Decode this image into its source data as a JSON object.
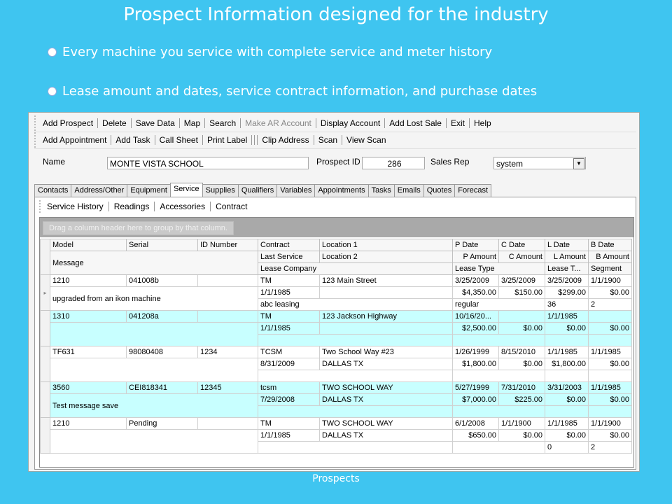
{
  "slide": {
    "title": "Prospect Information designed for the industry",
    "bullets": [
      "Every machine you service with complete service and meter history",
      "Lease amount and dates, service contract information, and purchase dates"
    ],
    "footer": "Prospects"
  },
  "toolbar1": [
    "Add Prospect",
    "Delete",
    "Save Data",
    "Map",
    "Search",
    "Make AR Account",
    "Display Account",
    "Add Lost Sale",
    "Exit",
    "Help"
  ],
  "toolbar2": [
    "Add Appointment",
    "Add Task",
    "Call Sheet",
    "Print Label",
    "Clip Address",
    "Scan",
    "View Scan"
  ],
  "form": {
    "name_label": "Name",
    "name_value": "MONTE VISTA SCHOOL",
    "prospect_id_label": "Prospect ID",
    "prospect_id_value": "286",
    "sales_rep_label": "Sales Rep",
    "sales_rep_value": "system"
  },
  "tabs": [
    "Contacts",
    "Address/Other",
    "Equipment",
    "Service",
    "Supplies",
    "Qualifiers",
    "Variables",
    "Appointments",
    "Tasks",
    "Emails",
    "Quotes",
    "Forecast"
  ],
  "active_tab": "Service",
  "subtabs": [
    "Service History",
    "Readings",
    "Accessories",
    "Contract"
  ],
  "grid": {
    "group_hint": "Drag a column header here to group by that column.",
    "headers": {
      "row1": [
        "Model",
        "Serial",
        "ID Number",
        "Contract",
        "Location 1",
        "P Date",
        "C Date",
        "L Date",
        "B Date"
      ],
      "row2": [
        "Message",
        "Last Service",
        "Location 2",
        "P Amount",
        "C Amount",
        "L Amount",
        "B Amount"
      ],
      "row3": [
        "Lease Company",
        "Lease Type",
        "Lease T...",
        "Segment"
      ]
    },
    "records": [
      {
        "model": "1210",
        "serial": "041008b",
        "id_number": "",
        "contract": "TM",
        "location1": "123 Main Street",
        "p_date": "3/25/2009",
        "c_date": "3/25/2009",
        "l_date": "3/25/2009",
        "b_date": "1/1/1900",
        "message": "upgraded from an ikon machine",
        "last_service": "1/1/1985",
        "location2": "",
        "p_amount": "$4,350.00",
        "c_amount": "$150.00",
        "l_amount": "$299.00",
        "b_amount": "$0.00",
        "lease_company": "abc leasing",
        "lease_type": "regular",
        "lease_term": "36",
        "segment": "2"
      },
      {
        "model": "1310",
        "serial": "041208a",
        "id_number": "",
        "contract": "TM",
        "location1": "123 Jackson Highway",
        "p_date": "10/16/20...",
        "c_date": "",
        "l_date": "1/1/1985",
        "b_date": "",
        "message": "",
        "last_service": "1/1/1985",
        "location2": "",
        "p_amount": "$2,500.00",
        "c_amount": "$0.00",
        "l_amount": "$0.00",
        "b_amount": "$0.00",
        "lease_company": "",
        "lease_type": "",
        "lease_term": "",
        "segment": ""
      },
      {
        "model": "TF631",
        "serial": "98080408",
        "id_number": "1234",
        "contract": "TCSM",
        "location1": "Two School Way #23",
        "p_date": "1/26/1999",
        "c_date": "8/15/2010",
        "l_date": "1/1/1985",
        "b_date": "1/1/1985",
        "message": "",
        "last_service": "8/31/2009",
        "location2": "DALLAS TX",
        "p_amount": "$1,800.00",
        "c_amount": "$0.00",
        "l_amount": "$1,800.00",
        "b_amount": "$0.00",
        "lease_company": "",
        "lease_type": "",
        "lease_term": "",
        "segment": ""
      },
      {
        "model": "3560",
        "serial": "CEI818341",
        "id_number": "12345",
        "contract": "tcsm",
        "location1": "TWO SCHOOL WAY",
        "p_date": "5/27/1999",
        "c_date": "7/31/2010",
        "l_date": "3/31/2003",
        "b_date": "1/1/1985",
        "message": "Test message save",
        "last_service": "7/29/2008",
        "location2": "DALLAS TX",
        "p_amount": "$7,000.00",
        "c_amount": "$225.00",
        "l_amount": "$0.00",
        "b_amount": "$0.00",
        "lease_company": "",
        "lease_type": "",
        "lease_term": "",
        "segment": ""
      },
      {
        "model": "1210",
        "serial": "Pending",
        "id_number": "",
        "contract": "TM",
        "location1": "TWO SCHOOL WAY",
        "p_date": "6/1/2008",
        "c_date": "1/1/1900",
        "l_date": "1/1/1985",
        "b_date": "1/1/1900",
        "message": "",
        "last_service": "1/1/1985",
        "location2": "DALLAS TX",
        "p_amount": "$650.00",
        "c_amount": "$0.00",
        "l_amount": "$0.00",
        "b_amount": "$0.00",
        "lease_company": "",
        "lease_type": "",
        "lease_term": "0",
        "segment": "2"
      }
    ]
  }
}
